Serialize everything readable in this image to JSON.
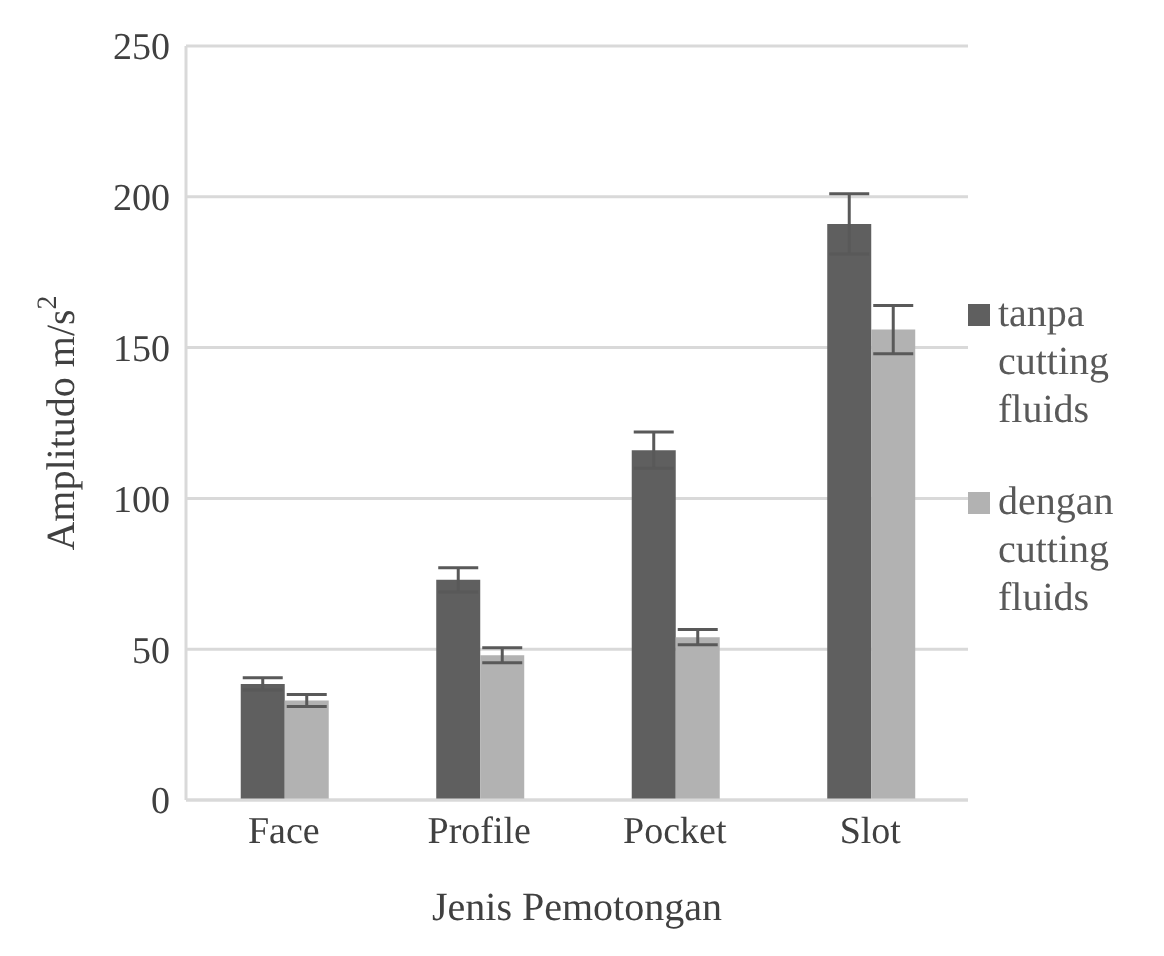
{
  "chart_data": {
    "type": "bar",
    "xlabel": "Jenis Pemotongan",
    "ylabel": "Amplitudo m/s$^{2}$",
    "categories": [
      "Face",
      "Profile",
      "Pocket",
      "Slot"
    ],
    "series": [
      {
        "name": "tanpa cutting fluids",
        "color": "#5f5f5f",
        "values": [
          38.5,
          73,
          116,
          191
        ],
        "errors": [
          2,
          4,
          6,
          10
        ]
      },
      {
        "name": "dengan cutting fluids",
        "color": "#b2b2b2",
        "values": [
          33,
          48,
          54,
          156
        ],
        "errors": [
          2,
          2.5,
          2.5,
          8
        ]
      }
    ],
    "ylim": [
      0,
      250
    ],
    "yticks": [
      0,
      50,
      100,
      150,
      200,
      250
    ],
    "grid": "y",
    "legend": "right"
  }
}
